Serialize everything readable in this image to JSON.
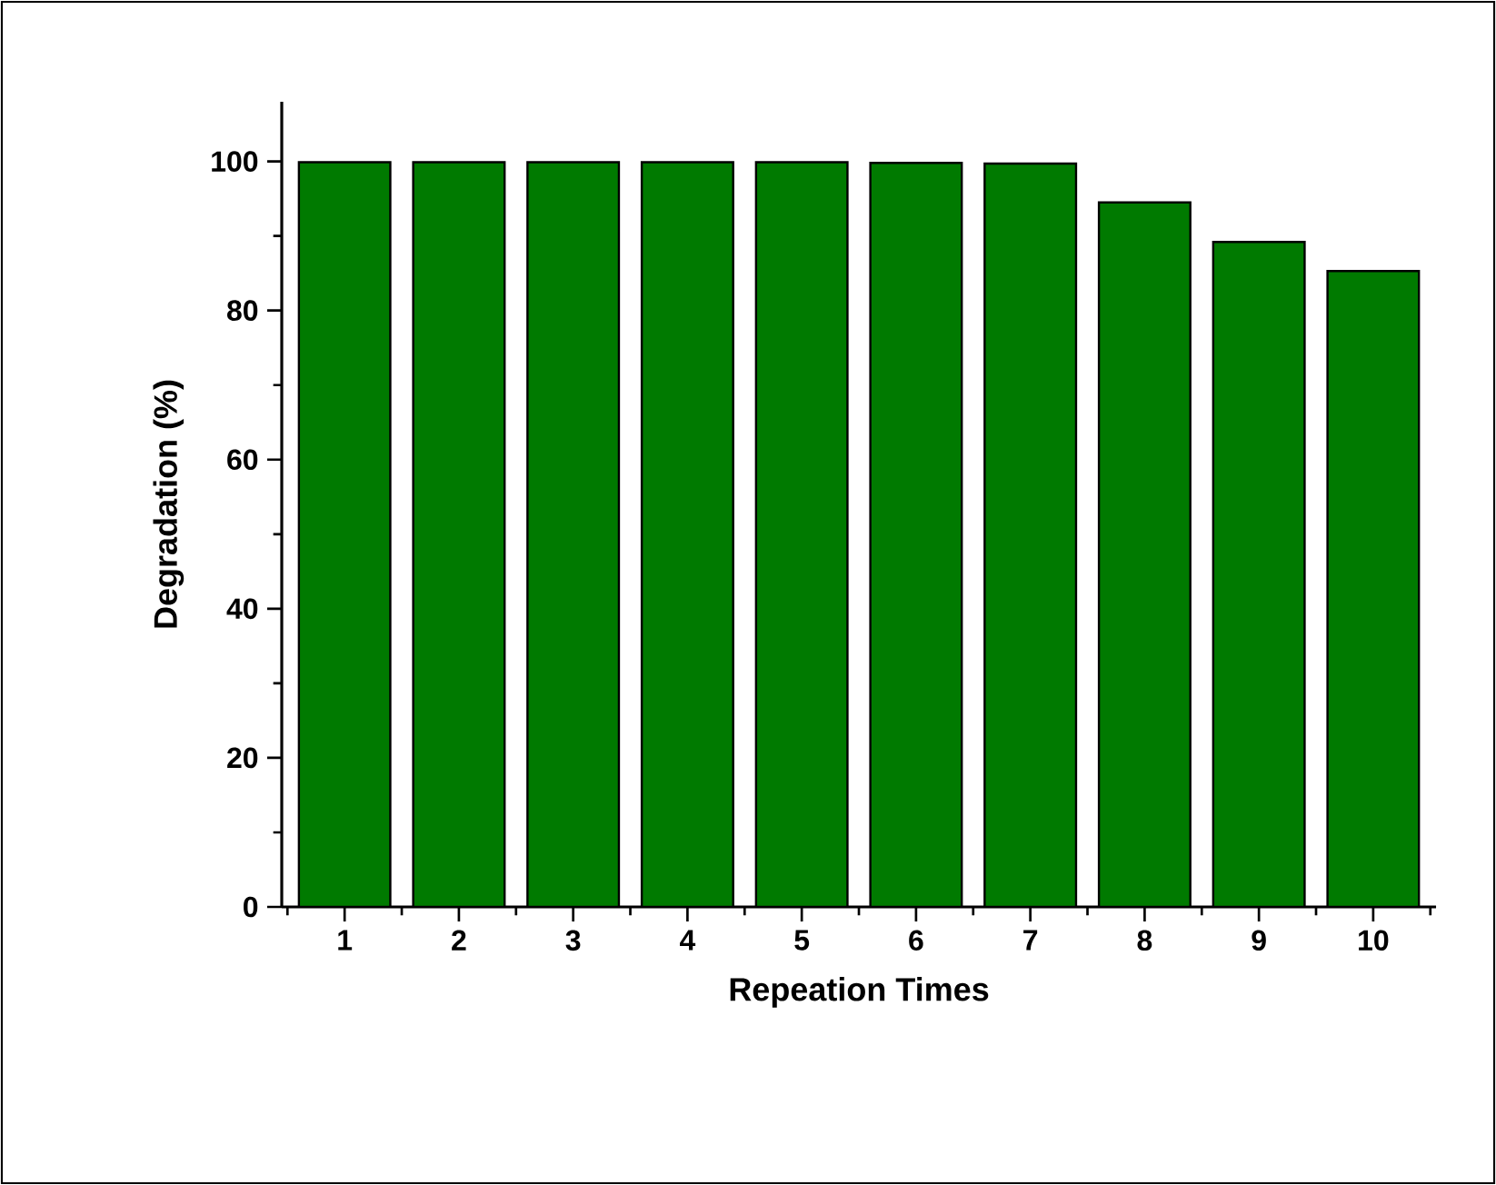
{
  "chart_data": {
    "type": "bar",
    "xlabel": "Repeation Times",
    "ylabel": "Degradation (%)",
    "categories": [
      "1",
      "2",
      "3",
      "4",
      "5",
      "6",
      "7",
      "8",
      "9",
      "10"
    ],
    "values": [
      99.9,
      99.9,
      99.9,
      99.9,
      99.9,
      99.8,
      99.7,
      94.5,
      89.2,
      85.3
    ],
    "color": "#007a00",
    "ylim": [
      0,
      108
    ],
    "yticks": [
      0,
      20,
      40,
      60,
      80,
      100
    ],
    "grid": false
  }
}
